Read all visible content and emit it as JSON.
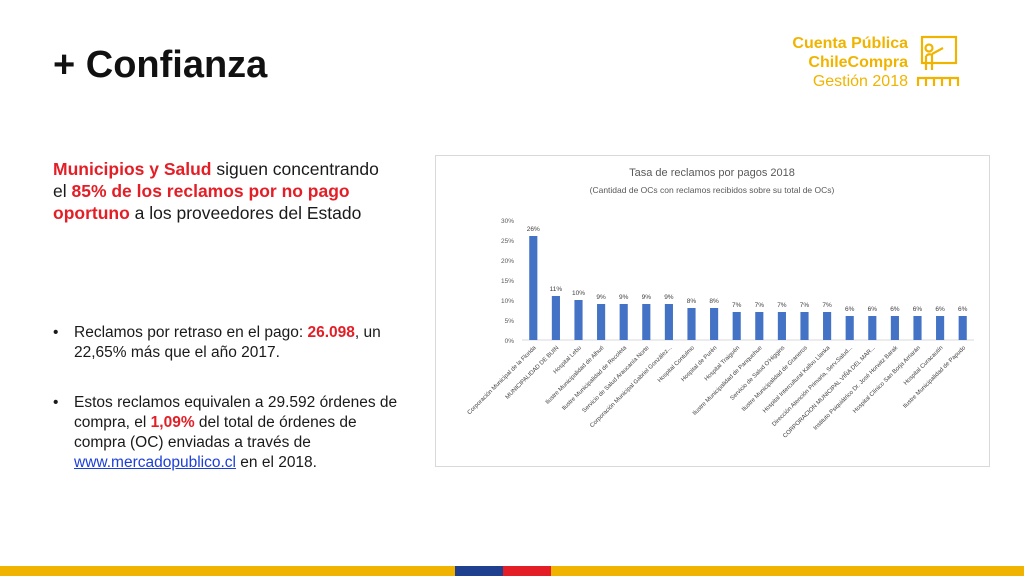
{
  "slide": {
    "title": "+ Confianza"
  },
  "logo": {
    "line1": "Cuenta Pública",
    "line2": "ChileCompra",
    "line3": "Gestión 2018",
    "icon": "presenter-icon",
    "color": "#f0b400"
  },
  "lead": {
    "part1": "Municipios y Salud",
    "part2": " siguen concentrando el ",
    "part3": "85% de los reclamos por no pago oportuno",
    "part4": " a los proveedores del Estado"
  },
  "bullets": [
    {
      "marker": "•",
      "a": "Reclamos por retraso en el pago: ",
      "b": "26.098",
      "c": ", un 22,65% más que el año 2017."
    },
    {
      "marker": "•",
      "a": "Estos reclamos equivalen a 29.592 órdenes de compra, el ",
      "b": "1,09%",
      "c": " del total de órdenes de compra (OC) enviadas a través de ",
      "link": "www.mercadopublico.cl",
      "d": " en el 2018."
    }
  ],
  "chart_data": {
    "type": "bar",
    "title": "Tasa de reclamos por pagos 2018",
    "subtitle": "(Cantidad de OCs con reclamos recibidos sobre su total de OCs)",
    "categories": [
      "Corporación Municipal de la Florida",
      "MUNICIPALIDAD DE BUIN",
      "Hospital Lebu",
      "Ilustre Municipalidad de Alhué",
      "Ilustre Municipalidad de Recoleta",
      "Servicio de Salud Araucanía Norte",
      "Corporación Municipal Gabriel González...",
      "Hospital Contulmo",
      "Hospital de Purén",
      "Hospital Traiguén",
      "Ilustre Municipalidad de Panquehue",
      "Servicio de Salud O'Higgins",
      "Ilustre Municipalidad de Graneros",
      "Hospital Intercultural Kallvu Llanka",
      "Dirección Atención Primaria, Serv.Salud...",
      "CORPORACION MUNICIPAL VIÑA DEL MAR...",
      "Instituto Psiquiátrico Dr. José Horwitz Barak",
      "Hospital Clínico San Borja Arriarán",
      "Hospital Curacautín",
      "Ilustre Municipalidad de Papudo"
    ],
    "values": [
      26,
      11,
      10,
      9,
      9,
      9,
      9,
      8,
      8,
      7,
      7,
      7,
      7,
      7,
      6,
      6,
      6,
      6,
      6,
      6
    ],
    "data_labels": [
      "26%",
      "11%",
      "10%",
      "9%",
      "9%",
      "9%",
      "9%",
      "8%",
      "8%",
      "7%",
      "7%",
      "7%",
      "7%",
      "7%",
      "6%",
      "6%",
      "6%",
      "6%",
      "6%",
      "6%"
    ],
    "yticks": [
      "0%",
      "5%",
      "10%",
      "15%",
      "20%",
      "25%",
      "30%"
    ],
    "ylim": [
      0,
      30
    ],
    "bar_color": "#4472c4",
    "grid": false,
    "legend": "none"
  },
  "footer_colors": [
    "#f0b400",
    "#1f3f8f",
    "#e41e26"
  ]
}
